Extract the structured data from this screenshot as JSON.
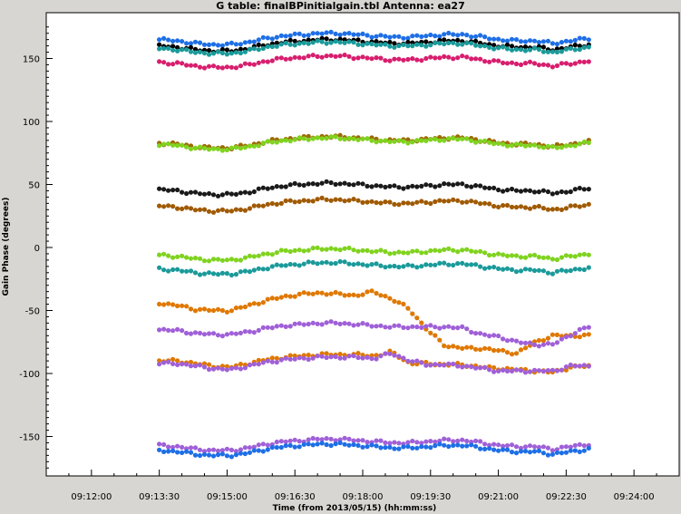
{
  "chart_data": {
    "type": "scatter",
    "title": "G table: finalBPinitialgain.tbl   Antenna: ea27",
    "xlabel": "Time (from 2013/05/15) (hh:mm:ss)",
    "ylabel": "Gain Phase (degrees)",
    "xlim": [
      "09:11:00",
      "09:25:00"
    ],
    "ylim": [
      -180,
      180
    ],
    "grid": false,
    "x_ticks": [
      "09:12:00",
      "09:13:30",
      "09:15:00",
      "09:16:30",
      "09:18:00",
      "09:19:30",
      "09:21:00",
      "09:22:30",
      "09:24:00"
    ],
    "y_ticks": [
      "-150",
      "-100",
      "-50",
      "0",
      "50",
      "100",
      "150"
    ],
    "y_tick_values": [
      -150,
      -100,
      -50,
      0,
      50,
      100,
      150
    ],
    "time_range": [
      "09:13:30",
      "09:23:00"
    ],
    "series": [
      {
        "color": "#1e6fe6",
        "base": 165,
        "shape": [
          0,
          -1,
          -3,
          -4,
          -4,
          -2,
          1,
          3,
          4,
          5,
          5,
          4,
          3,
          2,
          2,
          3,
          4,
          4,
          2,
          0,
          -1,
          -1,
          -3,
          -1,
          1
        ]
      },
      {
        "color": "#000000",
        "base": 160,
        "shape": [
          0,
          -1,
          -3,
          -4,
          -4,
          -2,
          1,
          3,
          4,
          5,
          5,
          4,
          3,
          2,
          2,
          3,
          4,
          4,
          2,
          0,
          -1,
          -1,
          -3,
          -1,
          1
        ]
      },
      {
        "color": "#1a9a9a",
        "base": 158,
        "shape": [
          0,
          -1,
          -3,
          -4,
          -4,
          -2,
          1,
          3,
          4,
          5,
          5,
          4,
          3,
          2,
          2,
          3,
          4,
          4,
          2,
          0,
          -1,
          -1,
          -3,
          -1,
          1
        ]
      },
      {
        "color": "#d81e6e",
        "base": 147,
        "shape": [
          0,
          -1,
          -3,
          -4,
          -4,
          -2,
          1,
          3,
          4,
          5,
          5,
          4,
          3,
          2,
          2,
          3,
          4,
          4,
          2,
          0,
          -1,
          -1,
          -3,
          -1,
          1
        ]
      },
      {
        "color": "#9c6a00",
        "base": 83,
        "shape": [
          0,
          -1,
          -3,
          -4,
          -4,
          -2,
          1,
          3,
          4,
          5,
          5,
          4,
          3,
          2,
          2,
          3,
          4,
          4,
          2,
          0,
          -1,
          -1,
          -3,
          -1,
          1
        ]
      },
      {
        "color": "#7fd31e",
        "base": 82,
        "shape": [
          0,
          -1,
          -3,
          -4,
          -4,
          -2,
          1,
          3,
          4,
          5,
          5,
          4,
          3,
          2,
          2,
          3,
          4,
          4,
          2,
          0,
          -1,
          -1,
          -3,
          -1,
          1
        ]
      },
      {
        "color": "#1a1a1a",
        "base": 46,
        "shape": [
          0,
          -1,
          -3,
          -4,
          -4,
          -2,
          1,
          3,
          4,
          5,
          5,
          4,
          3,
          2,
          2,
          3,
          4,
          4,
          2,
          0,
          -1,
          -1,
          -3,
          -1,
          1
        ]
      },
      {
        "color": "#a05a00",
        "base": 33,
        "shape": [
          0,
          -1,
          -3,
          -4,
          -4,
          -2,
          1,
          3,
          4,
          5,
          5,
          4,
          3,
          2,
          2,
          3,
          4,
          4,
          2,
          0,
          -1,
          -1,
          -3,
          -1,
          1
        ]
      },
      {
        "color": "#7fd31e",
        "base": -6,
        "shape": [
          0,
          -1,
          -3,
          -4,
          -4,
          -2,
          1,
          3,
          4,
          5,
          5,
          4,
          3,
          2,
          2,
          3,
          4,
          4,
          2,
          0,
          -1,
          -1,
          -3,
          -1,
          1
        ]
      },
      {
        "color": "#1a9a9a",
        "base": -17,
        "shape": [
          0,
          -1,
          -3,
          -4,
          -4,
          -2,
          1,
          3,
          4,
          5,
          5,
          4,
          3,
          2,
          2,
          3,
          4,
          4,
          2,
          0,
          -1,
          -1,
          -3,
          -1,
          1
        ]
      },
      {
        "color": "#e07800",
        "base": -44,
        "shape": [
          0,
          -2,
          -5,
          -6,
          -6,
          -2,
          2,
          5,
          7,
          8,
          7,
          6,
          9,
          3,
          -5,
          -22,
          -34,
          -36,
          -36,
          -38,
          -40,
          -31,
          -26,
          -26,
          -26
        ]
      },
      {
        "color": "#a060d8",
        "base": -65,
        "shape": [
          0,
          -1,
          -3,
          -4,
          -4,
          -2,
          1,
          3,
          4,
          5,
          5,
          4,
          3,
          2,
          2,
          2,
          2,
          1,
          -4,
          -6,
          -10,
          -12,
          -12,
          -4,
          2
        ]
      },
      {
        "color": "#e07800",
        "base": -90,
        "shape": [
          0,
          0,
          -2,
          -4,
          -5,
          -2,
          1,
          3,
          4,
          5,
          5,
          5,
          4,
          7,
          -2,
          -2,
          -3,
          -3,
          -5,
          -6,
          -7,
          -8,
          -9,
          -5,
          -4
        ]
      },
      {
        "color": "#a060d8",
        "base": -92,
        "shape": [
          0,
          0,
          -2,
          -4,
          -5,
          -2,
          1,
          3,
          4,
          5,
          5,
          5,
          4,
          8,
          2,
          -1,
          -1,
          -2,
          -4,
          -6,
          -6,
          -6,
          -6,
          -2,
          -2
        ]
      },
      {
        "color": "#a060d8",
        "base": -157,
        "shape": [
          0,
          -1,
          -3,
          -4,
          -4,
          -2,
          1,
          3,
          4,
          5,
          5,
          4,
          3,
          2,
          2,
          3,
          4,
          4,
          2,
          0,
          -1,
          -1,
          -3,
          -1,
          1
        ]
      },
      {
        "color": "#1e6fe6",
        "base": -161,
        "shape": [
          0,
          -1,
          -3,
          -4,
          -4,
          -2,
          1,
          3,
          4,
          5,
          5,
          4,
          3,
          2,
          2,
          3,
          4,
          4,
          2,
          0,
          -1,
          -1,
          -3,
          -1,
          1
        ]
      }
    ]
  }
}
